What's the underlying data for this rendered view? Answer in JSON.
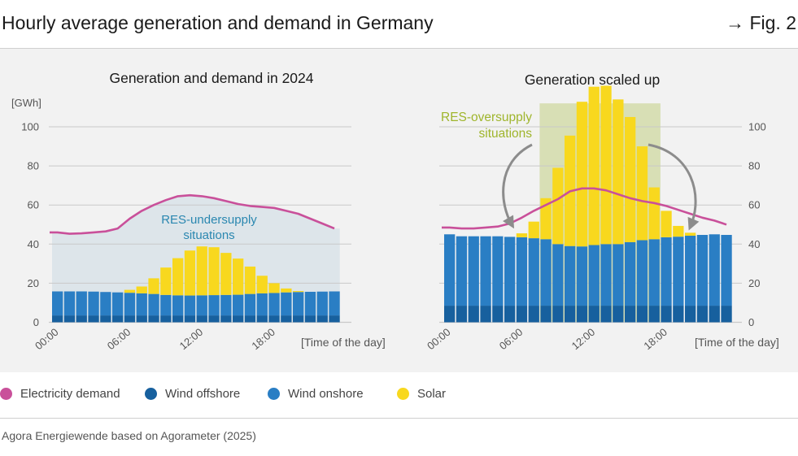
{
  "header": {
    "title": "Hourly average generation and demand in Germany",
    "fig_label": "→ Fig. 2"
  },
  "colors": {
    "demand": "#c9509a",
    "offshore": "#17609e",
    "onshore": "#2a7ec4",
    "solar": "#f8d81e",
    "under_shade": "#dde5ea",
    "over_shade": "#d8dfb5",
    "under_text": "#2a87b0",
    "over_text": "#9fb52c",
    "grid": "#c9c9c9",
    "axis_text": "#555555",
    "arrow": "#8c8c8c"
  },
  "legend": [
    {
      "label": "Electricity demand",
      "color": "#c9509a"
    },
    {
      "label": "Wind offshore",
      "color": "#17609e"
    },
    {
      "label": "Wind onshore",
      "color": "#2a7ec4"
    },
    {
      "label": "Solar",
      "color": "#f8d81e"
    }
  ],
  "source": "Agora Energiewende based on Agorameter (2025)",
  "chart_data": [
    {
      "type": "bar",
      "title": "Generation and demand in 2024",
      "ylabel": "[GWh]",
      "xlabel": "[Time of the day]",
      "ylim": [
        0,
        100
      ],
      "yticks": [
        0,
        20,
        40,
        60,
        80,
        100
      ],
      "xticks": [
        "00:00",
        "06:00",
        "12:00",
        "18:00"
      ],
      "annotation": [
        "RES-undersupply",
        "situations"
      ],
      "hours": [
        0,
        1,
        2,
        3,
        4,
        5,
        6,
        7,
        8,
        9,
        10,
        11,
        12,
        13,
        14,
        15,
        16,
        17,
        18,
        19,
        20,
        21,
        22,
        23
      ],
      "series": [
        {
          "name": "Wind offshore",
          "values": [
            3.5,
            3.5,
            3.5,
            3.5,
            3.5,
            3.5,
            3.5,
            3.5,
            3.5,
            3.5,
            3.5,
            3.5,
            3.5,
            3.5,
            3.5,
            3.5,
            3.5,
            3.5,
            3.5,
            3.5,
            3.5,
            3.5,
            3.5,
            3.5
          ]
        },
        {
          "name": "Wind onshore",
          "values": [
            12.3,
            12.3,
            12.3,
            12.2,
            12,
            11.8,
            11.6,
            11.3,
            11,
            10.5,
            10.3,
            10.2,
            10.3,
            10.4,
            10.5,
            10.6,
            11,
            11.3,
            11.5,
            11.8,
            12,
            12.1,
            12.2,
            12.3
          ]
        },
        {
          "name": "Solar",
          "values": [
            0,
            0,
            0,
            0,
            0,
            0,
            1.5,
            3.5,
            8,
            14,
            19,
            23,
            25,
            24.5,
            21.5,
            18.5,
            14,
            9,
            5,
            2,
            0.5,
            0,
            0,
            0
          ]
        },
        {
          "name": "Electricity demand",
          "values": [
            46,
            45.3,
            45.5,
            46,
            46.5,
            48,
            53,
            57,
            60,
            62.5,
            64.5,
            65,
            64.5,
            63.5,
            62,
            60.5,
            59.5,
            59,
            58.5,
            57,
            55.5,
            53,
            50.5,
            48
          ]
        }
      ]
    },
    {
      "type": "bar",
      "title": "Generation scaled up",
      "xlabel": "[Time of the day]",
      "ylim": [
        0,
        100
      ],
      "yticks": [
        0,
        20,
        40,
        60,
        80,
        100
      ],
      "xticks": [
        "00:00",
        "06:00",
        "12:00",
        "18:00"
      ],
      "annotation": [
        "RES-oversupply",
        "situations"
      ],
      "hours": [
        0,
        1,
        2,
        3,
        4,
        5,
        6,
        7,
        8,
        9,
        10,
        11,
        12,
        13,
        14,
        15,
        16,
        17,
        18,
        19,
        20,
        21,
        22,
        23
      ],
      "series": [
        {
          "name": "Wind offshore",
          "values": [
            8.5,
            8.5,
            8.5,
            8.5,
            8.5,
            8.5,
            8.5,
            8.5,
            8.5,
            8.5,
            8.5,
            8.5,
            8.5,
            8.5,
            8.5,
            8.5,
            8.5,
            8.5,
            8.5,
            8.5,
            8.5,
            8.5,
            8.5,
            8.5
          ]
        },
        {
          "name": "Wind onshore",
          "values": [
            36.5,
            35.5,
            35.5,
            35.5,
            35.5,
            35.2,
            35,
            34.5,
            34,
            31.5,
            30.5,
            30.3,
            31,
            31.5,
            31.5,
            32.5,
            33.5,
            34,
            35,
            35.3,
            35.8,
            36.2,
            36.5,
            36.2
          ]
        },
        {
          "name": "Solar",
          "values": [
            0,
            0,
            0,
            0,
            0,
            0,
            2,
            8.5,
            21,
            39,
            56.5,
            74,
            81,
            81,
            74,
            64,
            48,
            26.5,
            13.5,
            5.5,
            1.5,
            0,
            0,
            0
          ]
        },
        {
          "name": "Electricity demand",
          "values": [
            48.5,
            48,
            48,
            48.5,
            49,
            50.5,
            53.5,
            57,
            60,
            63,
            67,
            68.5,
            68.5,
            67.5,
            65.5,
            63.5,
            62,
            61,
            59.5,
            57.5,
            55.5,
            53.5,
            52,
            50
          ]
        }
      ]
    }
  ]
}
